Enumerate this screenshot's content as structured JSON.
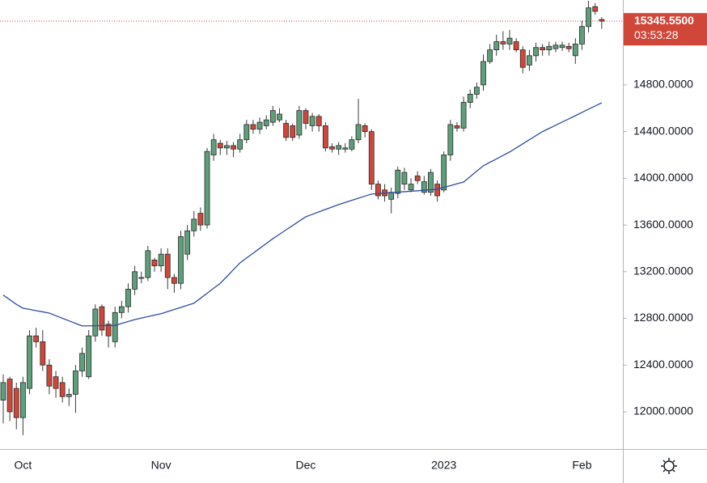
{
  "chart_data": {
    "type": "candlestick",
    "categories": [
      null,
      null,
      null,
      "Oct",
      null,
      null,
      null,
      null,
      null,
      null,
      null,
      null,
      null,
      null,
      null,
      null,
      null,
      null,
      null,
      null,
      null,
      null,
      null,
      null,
      "Nov",
      null,
      null,
      null,
      null,
      null,
      null,
      null,
      null,
      null,
      null,
      null,
      null,
      null,
      null,
      null,
      null,
      null,
      null,
      null,
      null,
      null,
      "Dec",
      null,
      null,
      null,
      null,
      null,
      null,
      null,
      null,
      null,
      null,
      null,
      null,
      null,
      null,
      null,
      null,
      null,
      null,
      null,
      null,
      "2023",
      null,
      null,
      null,
      null,
      null,
      null,
      null,
      null,
      null,
      null,
      null,
      null,
      null,
      null,
      null,
      null,
      null,
      null,
      null,
      null,
      "Feb",
      null,
      null,
      null
    ],
    "open": [
      12100,
      12280,
      12200,
      11950,
      12200,
      12650,
      12600,
      12400,
      12300,
      12250,
      12130,
      12150,
      12350,
      12300,
      12650,
      12900,
      12750,
      12600,
      12850,
      12900,
      13050,
      13150,
      13150,
      13300,
      13250,
      13350,
      13150,
      13100,
      13350,
      13550,
      13700,
      13600,
      14200,
      14300,
      14260,
      14280,
      14250,
      14330,
      14460,
      14420,
      14450,
      14480,
      14500,
      14470,
      14450,
      14370,
      14580,
      14450,
      14530,
      14450,
      14270,
      14250,
      14250,
      14250,
      14330,
      14450,
      14400,
      13950,
      13900,
      13820,
      13870,
      13950,
      13900,
      14020,
      13880,
      13880,
      13950,
      13900,
      14200,
      14450,
      14430,
      14650,
      14720,
      14800,
      15000,
      15100,
      15170,
      15150,
      15170,
      15100,
      14970,
      15050,
      15120,
      15100,
      15110,
      15120,
      15130,
      15050,
      15150,
      15300,
      15470,
      15360
    ],
    "high": [
      12320,
      12300,
      12250,
      12300,
      12700,
      12720,
      12700,
      12450,
      12350,
      12300,
      12200,
      12400,
      12550,
      12700,
      12920,
      12920,
      12780,
      12900,
      12950,
      13100,
      13250,
      13200,
      13420,
      13320,
      13400,
      13400,
      13180,
      13550,
      13600,
      13720,
      13750,
      14260,
      14380,
      14330,
      14320,
      14310,
      14380,
      14500,
      14500,
      14520,
      14540,
      14620,
      14600,
      14500,
      14470,
      14620,
      14600,
      14560,
      14550,
      14480,
      14300,
      14310,
      14300,
      14360,
      14680,
      14470,
      14420,
      13980,
      13950,
      13920,
      14100,
      14090,
      14000,
      14060,
      14020,
      14080,
      13980,
      14230,
      14500,
      14480,
      14700,
      14760,
      14820,
      15060,
      15150,
      15230,
      15260,
      15270,
      15200,
      15130,
      15100,
      15160,
      15150,
      15170,
      15170,
      15170,
      15160,
      15200,
      15350,
      15520,
      15500,
      15380
    ],
    "low": [
      11900,
      11920,
      11850,
      11800,
      12150,
      12550,
      12350,
      12150,
      12120,
      12080,
      12050,
      11990,
      12300,
      12280,
      12600,
      12650,
      12550,
      12550,
      12800,
      12850,
      13000,
      13100,
      13120,
      13200,
      13200,
      13050,
      13020,
      13050,
      13300,
      13500,
      13550,
      13570,
      14150,
      14200,
      14200,
      14180,
      14220,
      14300,
      14380,
      14380,
      14420,
      14450,
      14480,
      14320,
      14320,
      14340,
      14420,
      14400,
      14400,
      14230,
      14220,
      14200,
      14220,
      14230,
      14300,
      14350,
      13900,
      13820,
      13800,
      13700,
      13830,
      13900,
      13880,
      13950,
      13860,
      13850,
      13800,
      13880,
      14150,
      14400,
      14400,
      14600,
      14680,
      14750,
      14980,
      15050,
      15100,
      15100,
      15080,
      14900,
      14920,
      15000,
      15050,
      15050,
      15080,
      15090,
      15080,
      14980,
      15100,
      15250,
      15400,
      15280
    ],
    "close": [
      12250,
      12000,
      11950,
      12250,
      12650,
      12600,
      12400,
      12220,
      12200,
      12130,
      12150,
      12350,
      12500,
      12650,
      12880,
      12700,
      12650,
      12850,
      12900,
      13050,
      13200,
      13150,
      13380,
      13250,
      13350,
      13150,
      13100,
      13500,
      13550,
      13650,
      13600,
      14230,
      14330,
      14260,
      14280,
      14250,
      14330,
      14460,
      14420,
      14480,
      14500,
      14580,
      14550,
      14350,
      14350,
      14580,
      14470,
      14530,
      14450,
      14260,
      14250,
      14280,
      14260,
      14330,
      14460,
      14400,
      13950,
      13850,
      13850,
      13880,
      14070,
      14050,
      13950,
      13980,
      13970,
      14050,
      13850,
      14200,
      14460,
      14430,
      14650,
      14720,
      14780,
      15000,
      15100,
      15170,
      15150,
      15200,
      15100,
      14950,
      15050,
      15120,
      15100,
      15130,
      15140,
      15140,
      15110,
      15150,
      15300,
      15460,
      15430,
      15345.55
    ],
    "up_color": "#5e9f7b",
    "down_color": "#d0473a",
    "moving_average": {
      "color": "#2f4da0",
      "values": [
        13000,
        12960,
        12920,
        12887,
        12877,
        12866,
        12856,
        12845,
        12823,
        12801,
        12779,
        12757,
        12735,
        12736,
        12737,
        12738,
        12739,
        12740,
        12757,
        12773,
        12790,
        12803,
        12815,
        12828,
        12840,
        12858,
        12876,
        12894,
        12912,
        12930,
        12973,
        13015,
        13058,
        13100,
        13158,
        13217,
        13275,
        13317,
        13358,
        13400,
        13441,
        13483,
        13520,
        13558,
        13595,
        13633,
        13670,
        13691,
        13712,
        13733,
        13754,
        13775,
        13793,
        13811,
        13829,
        13847,
        13865,
        13869,
        13873,
        13877,
        13881,
        13885,
        13889,
        13893,
        13898,
        13902,
        13906,
        13922,
        13937,
        13953,
        13968,
        14014,
        14061,
        14107,
        14137,
        14166,
        14196,
        14225,
        14260,
        14295,
        14330,
        14365,
        14400,
        14427,
        14454,
        14482,
        14509,
        14536,
        14564,
        14592,
        14619,
        14647
      ]
    },
    "last_price": {
      "value": 15345.55,
      "label": "15345.5500"
    },
    "countdown": "03:53:28",
    "ylim": [
      11681,
      15527
    ],
    "yticks": [
      {
        "value": 12000,
        "label": "12000.0000"
      },
      {
        "value": 12400,
        "label": "12400.0000"
      },
      {
        "value": 12800,
        "label": "12800.0000"
      },
      {
        "value": 13200,
        "label": "13200.0000"
      },
      {
        "value": 13600,
        "label": "13600.0000"
      },
      {
        "value": 14000,
        "label": "14000.0000"
      },
      {
        "value": 14400,
        "label": "14400.0000"
      },
      {
        "value": 14800,
        "label": "14800.0000"
      }
    ]
  }
}
